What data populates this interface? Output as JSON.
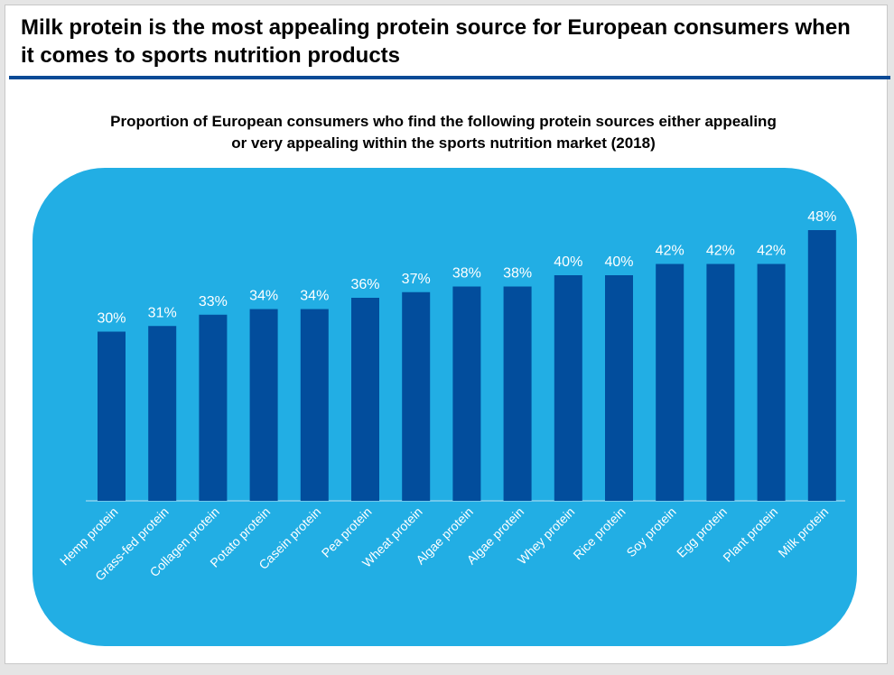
{
  "slide": {
    "title": "Milk protein is the most appealing protein source for European consumers when it comes to sports nutrition products",
    "subtitle_line1": "Proportion of European consumers who find the following protein sources either appealing",
    "subtitle_line2": "or very appealing within the sports nutrition market (2018)"
  },
  "colors": {
    "panel": "#22aee4",
    "bar": "#024d9c",
    "rule": "#0a4a96",
    "label": "#ffffff"
  },
  "chart_data": {
    "type": "bar",
    "title": "Proportion of European consumers who find the following protein sources either appealing or very appealing within the sports nutrition market (2018)",
    "categories": [
      "Hemp protein",
      "Grass-fed protein",
      "Collagen protein",
      "Potato protein",
      "Casein protein",
      "Pea protein",
      "Wheat protein",
      "Algae protein",
      "Algae protein",
      "Whey protein",
      "Rice protein",
      "Soy protein",
      "Egg protein",
      "Plant protein",
      "Milk protein"
    ],
    "values": [
      30,
      31,
      33,
      34,
      34,
      36,
      37,
      38,
      38,
      40,
      40,
      42,
      42,
      42,
      48
    ],
    "data_labels": [
      "30%",
      "31%",
      "33%",
      "34%",
      "34%",
      "36%",
      "37%",
      "38%",
      "38%",
      "40%",
      "40%",
      "42%",
      "42%",
      "42%",
      "48%"
    ],
    "xlabel": "",
    "ylabel": "",
    "unit": "%",
    "grid": false,
    "legend": "none"
  }
}
